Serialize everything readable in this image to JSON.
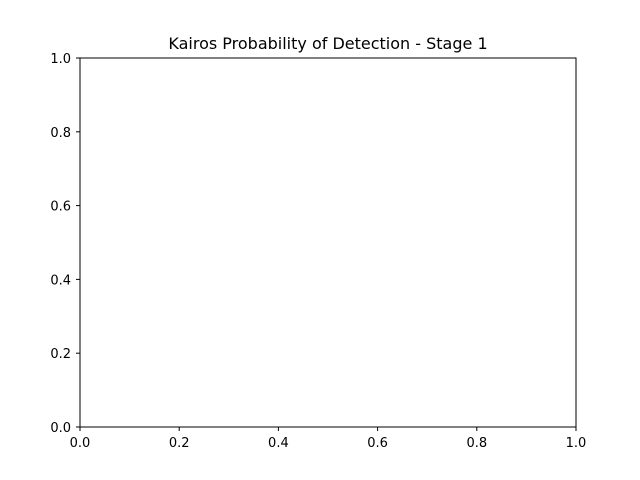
{
  "chart_data": {
    "type": "line",
    "title": "Kairos Probability of Detection - Stage 1",
    "xlabel": "",
    "ylabel": "",
    "xlim": [
      0,
      1
    ],
    "ylim": [
      0,
      1
    ],
    "x_ticks": [
      "0.0",
      "0.2",
      "0.4",
      "0.6",
      "0.8",
      "1.0"
    ],
    "y_ticks": [
      "0.0",
      "0.2",
      "0.4",
      "0.6",
      "0.8",
      "1.0"
    ],
    "series": [],
    "grid": false,
    "legend": "none"
  }
}
